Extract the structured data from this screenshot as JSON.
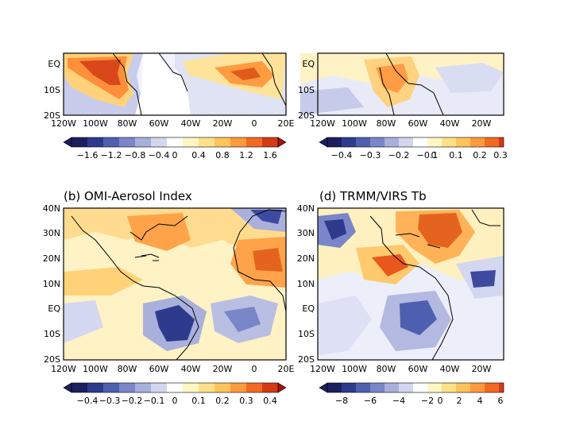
{
  "figure": {
    "panels": [
      {
        "id": "a",
        "title": "",
        "x_ticks": [
          "120W",
          "100W",
          "80W",
          "60W",
          "40W",
          "20W",
          "0",
          "20E"
        ],
        "y_ticks": [
          "EQ",
          "10S",
          "20S"
        ],
        "colorbar": [
          "−1.6",
          "−1.2",
          "−0.8",
          "−0.4",
          "0",
          "0.4",
          "0.8",
          "1.2",
          "1.6"
        ],
        "colors": [
          "#1b1f5e",
          "#2e3a8c",
          "#4f5fb0",
          "#7a86c8",
          "#a7afdc",
          "#d2d6ee",
          "#ffffff",
          "#fff6c4",
          "#ffe08a",
          "#ffc35c",
          "#ff9a3c",
          "#f26a22",
          "#d43a15",
          "#a8100c"
        ]
      },
      {
        "id": "c",
        "title": "",
        "x_ticks": [
          "120W",
          "100W",
          "80W",
          "60W",
          "40W",
          "20W"
        ],
        "y_ticks": [
          "EQ",
          "10S",
          "20S"
        ],
        "colorbar": [
          "−0.4",
          "−0.3",
          "−0.2",
          "−0.1",
          "0",
          "0.1",
          "0.2",
          "0.3"
        ]
      },
      {
        "id": "b",
        "title": "(b) OMI-Aerosol Index",
        "x_ticks": [
          "120W",
          "100W",
          "80W",
          "60W",
          "40W",
          "20W",
          "0",
          "20E"
        ],
        "y_ticks": [
          "40N",
          "30N",
          "20N",
          "10N",
          "EQ",
          "10S",
          "20S"
        ],
        "colorbar": [
          "−0.4",
          "−0.3",
          "−0.2",
          "−0.1",
          "0",
          "0.1",
          "0.2",
          "0.3",
          "0.4"
        ]
      },
      {
        "id": "d",
        "title": "(d) TRMM/VIRS Tb",
        "x_ticks": [
          "120W",
          "100W",
          "80W",
          "60W",
          "40W",
          "20W"
        ],
        "y_ticks": [
          "40N",
          "30N",
          "20N",
          "10N",
          "EQ",
          "10S",
          "20S"
        ],
        "colorbar": [
          "−8",
          "−6",
          "−4",
          "−2",
          "0",
          "2",
          "4",
          "6"
        ]
      }
    ]
  }
}
